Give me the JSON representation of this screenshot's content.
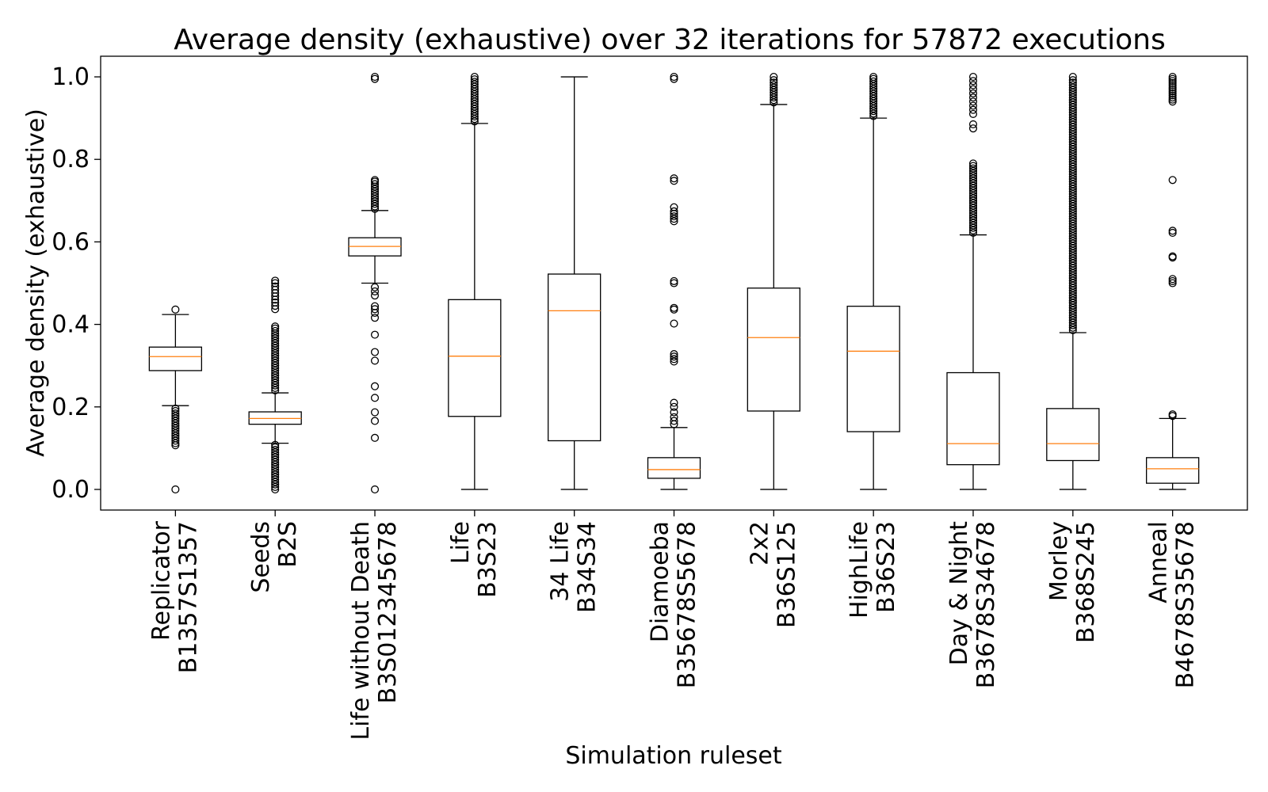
{
  "chart_data": {
    "type": "box",
    "title": "Average density (exhaustive) over 32 iterations for 57872 executions",
    "xlabel": "Simulation ruleset",
    "ylabel": "Average density (exhaustive)",
    "ylim": [
      -0.05,
      1.05
    ],
    "yticks": [
      0.0,
      0.2,
      0.4,
      0.6,
      0.8,
      1.0
    ],
    "ytick_labels": [
      "0.0",
      "0.2",
      "0.4",
      "0.6",
      "0.8",
      "1.0"
    ],
    "colors": {
      "median": "#ff7f0e",
      "box": "#000000"
    },
    "boxes": [
      {
        "name": "Replicator",
        "rule": "B1357S1357",
        "whislo": 0.203,
        "q1": 0.288,
        "med": 0.322,
        "q3": 0.345,
        "whishi": 0.424,
        "fliers": [
          0.0,
          0.107,
          0.112,
          0.118,
          0.124,
          0.13,
          0.136,
          0.142,
          0.148,
          0.154,
          0.16,
          0.166,
          0.172,
          0.178,
          0.184,
          0.19,
          0.196,
          0.436
        ]
      },
      {
        "name": "Seeds",
        "rule": "B2S",
        "whislo": 0.112,
        "q1": 0.158,
        "med": 0.172,
        "q3": 0.188,
        "whishi": 0.234,
        "fliers": [
          0.0,
          0.006,
          0.012,
          0.018,
          0.024,
          0.03,
          0.036,
          0.042,
          0.048,
          0.054,
          0.06,
          0.066,
          0.072,
          0.078,
          0.084,
          0.09,
          0.096,
          0.102,
          0.108,
          0.24,
          0.246,
          0.252,
          0.258,
          0.264,
          0.27,
          0.276,
          0.282,
          0.288,
          0.294,
          0.3,
          0.306,
          0.312,
          0.318,
          0.324,
          0.33,
          0.336,
          0.342,
          0.348,
          0.354,
          0.36,
          0.366,
          0.372,
          0.378,
          0.384,
          0.39,
          0.395,
          0.437,
          0.445,
          0.453,
          0.46,
          0.468,
          0.476,
          0.484,
          0.492,
          0.5,
          0.506
        ]
      },
      {
        "name": "Life without Death",
        "rule": "B3S012345678",
        "whislo": 0.5,
        "q1": 0.566,
        "med": 0.589,
        "q3": 0.61,
        "whishi": 0.676,
        "fliers": [
          0.0,
          0.125,
          0.166,
          0.187,
          0.222,
          0.25,
          0.312,
          0.333,
          0.375,
          0.416,
          0.428,
          0.437,
          0.444,
          0.47,
          0.48,
          0.49,
          0.68,
          0.686,
          0.692,
          0.698,
          0.704,
          0.71,
          0.716,
          0.722,
          0.728,
          0.734,
          0.74,
          0.746,
          0.75,
          0.995,
          1.0
        ]
      },
      {
        "name": "Life",
        "rule": "B3S23",
        "whislo": 0.0,
        "q1": 0.177,
        "med": 0.323,
        "q3": 0.46,
        "whishi": 0.887,
        "fliers": [
          0.892,
          0.898,
          0.904,
          0.91,
          0.916,
          0.922,
          0.928,
          0.934,
          0.94,
          0.946,
          0.952,
          0.958,
          0.964,
          0.97,
          0.976,
          0.982,
          0.988,
          0.994,
          1.0
        ]
      },
      {
        "name": "34 Life",
        "rule": "B34S34",
        "whislo": 0.0,
        "q1": 0.118,
        "med": 0.433,
        "q3": 0.522,
        "whishi": 1.0,
        "fliers": []
      },
      {
        "name": "Diamoeba",
        "rule": "B35678S5678",
        "whislo": 0.0,
        "q1": 0.027,
        "med": 0.048,
        "q3": 0.077,
        "whishi": 0.15,
        "fliers": [
          0.158,
          0.166,
          0.175,
          0.187,
          0.2,
          0.21,
          0.31,
          0.316,
          0.322,
          0.328,
          0.402,
          0.436,
          0.44,
          0.5,
          0.505,
          0.65,
          0.656,
          0.662,
          0.668,
          0.674,
          0.684,
          0.748,
          0.754,
          0.995,
          1.0
        ]
      },
      {
        "name": "2x2",
        "rule": "B36S125",
        "whislo": 0.0,
        "q1": 0.19,
        "med": 0.368,
        "q3": 0.488,
        "whishi": 0.933,
        "fliers": [
          0.938,
          0.944,
          0.95,
          0.956,
          0.962,
          0.968,
          0.974,
          0.98,
          0.986,
          0.992,
          1.0
        ]
      },
      {
        "name": "HighLife",
        "rule": "B36S23",
        "whislo": 0.0,
        "q1": 0.14,
        "med": 0.335,
        "q3": 0.444,
        "whishi": 0.9,
        "fliers": [
          0.905,
          0.911,
          0.917,
          0.923,
          0.929,
          0.935,
          0.941,
          0.947,
          0.953,
          0.959,
          0.965,
          0.971,
          0.977,
          0.983,
          0.989,
          0.995,
          1.0
        ]
      },
      {
        "name": "Day & Night",
        "rule": "B3678S34678",
        "whislo": 0.0,
        "q1": 0.06,
        "med": 0.111,
        "q3": 0.283,
        "whishi": 0.617,
        "fliers": [
          0.622,
          0.628,
          0.634,
          0.64,
          0.646,
          0.652,
          0.658,
          0.664,
          0.67,
          0.676,
          0.682,
          0.688,
          0.694,
          0.7,
          0.706,
          0.712,
          0.718,
          0.724,
          0.73,
          0.736,
          0.742,
          0.748,
          0.754,
          0.76,
          0.766,
          0.772,
          0.778,
          0.784,
          0.79,
          0.875,
          0.885,
          0.91,
          0.92,
          0.93,
          0.94,
          0.95,
          0.96,
          0.97,
          0.98,
          0.99,
          1.0
        ]
      },
      {
        "name": "Morley",
        "rule": "B368S245",
        "whislo": 0.0,
        "q1": 0.07,
        "med": 0.111,
        "q3": 0.196,
        "whishi": 0.38,
        "fliers": [
          0.386,
          0.392,
          0.398,
          0.404,
          0.41,
          0.416,
          0.422,
          0.428,
          0.434,
          0.44,
          0.446,
          0.452,
          0.458,
          0.464,
          0.47,
          0.476,
          0.482,
          0.488,
          0.494,
          0.5,
          0.506,
          0.512,
          0.518,
          0.524,
          0.53,
          0.536,
          0.542,
          0.548,
          0.554,
          0.56,
          0.566,
          0.572,
          0.578,
          0.584,
          0.59,
          0.596,
          0.602,
          0.608,
          0.614,
          0.62,
          0.626,
          0.632,
          0.638,
          0.644,
          0.65,
          0.656,
          0.662,
          0.668,
          0.674,
          0.68,
          0.686,
          0.692,
          0.698,
          0.704,
          0.71,
          0.716,
          0.722,
          0.728,
          0.734,
          0.74,
          0.746,
          0.752,
          0.758,
          0.764,
          0.77,
          0.776,
          0.782,
          0.788,
          0.794,
          0.8,
          0.806,
          0.812,
          0.818,
          0.824,
          0.83,
          0.836,
          0.842,
          0.848,
          0.854,
          0.86,
          0.866,
          0.872,
          0.878,
          0.884,
          0.89,
          0.896,
          0.902,
          0.908,
          0.914,
          0.92,
          0.926,
          0.932,
          0.938,
          0.944,
          0.95,
          0.956,
          0.962,
          0.968,
          0.974,
          0.98,
          0.986,
          0.992,
          1.0
        ]
      },
      {
        "name": "Anneal",
        "rule": "B4678S35678",
        "whislo": 0.0,
        "q1": 0.015,
        "med": 0.05,
        "q3": 0.077,
        "whishi": 0.172,
        "fliers": [
          0.178,
          0.182,
          0.5,
          0.505,
          0.51,
          0.562,
          0.565,
          0.622,
          0.627,
          0.75,
          0.94,
          0.945,
          0.95,
          0.955,
          0.96,
          0.965,
          0.97,
          0.975,
          0.98,
          0.985,
          0.99,
          0.995,
          1.0
        ]
      }
    ]
  }
}
